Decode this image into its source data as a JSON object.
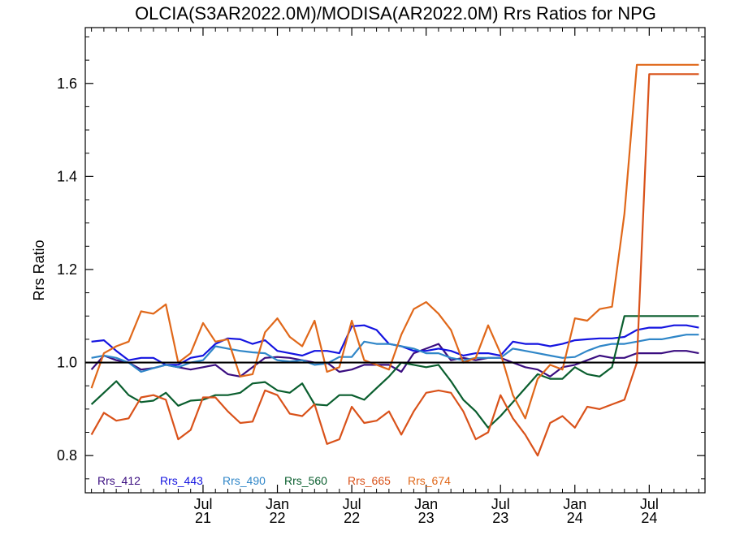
{
  "chart_data": {
    "type": "line",
    "title": "OLCIA(S3AR2022.0M)/MODISA(AR2022.0M)  Rrs Ratios for NPG",
    "xlabel": "",
    "ylabel": "Rrs Ratio",
    "ylim": [
      0.72,
      1.72
    ],
    "yticks": [
      0.8,
      1.0,
      1.2,
      1.4,
      1.6
    ],
    "ytick_labels": [
      "0.8",
      "1.0",
      "1.2",
      "1.4",
      "1.6"
    ],
    "xticks": [
      {
        "top": "Jul",
        "bottom": "21"
      },
      {
        "top": "Jan",
        "bottom": "22"
      },
      {
        "top": "Jul",
        "bottom": "22"
      },
      {
        "top": "Jan",
        "bottom": "23"
      },
      {
        "top": "Jul",
        "bottom": "23"
      },
      {
        "top": "Jan",
        "bottom": "24"
      },
      {
        "top": "Jul",
        "bottom": "24"
      }
    ],
    "x": [
      "2020-10",
      "2020-11",
      "2020-12",
      "2021-01",
      "2021-02",
      "2021-03",
      "2021-04",
      "2021-05",
      "2021-06",
      "2021-07",
      "2021-08",
      "2021-09",
      "2021-10",
      "2021-11",
      "2021-12",
      "2022-01",
      "2022-02",
      "2022-03",
      "2022-04",
      "2022-05",
      "2022-06",
      "2022-07",
      "2022-08",
      "2022-09",
      "2022-10",
      "2022-11",
      "2022-12",
      "2023-01",
      "2023-02",
      "2023-03",
      "2023-04",
      "2023-05",
      "2023-06",
      "2023-07",
      "2023-08",
      "2023-09",
      "2023-10",
      "2023-11",
      "2023-12",
      "2024-01",
      "2024-02",
      "2024-03",
      "2024-04",
      "2024-05",
      "2024-06",
      "2024-07",
      "2024-08",
      "2024-09",
      "2024-10",
      "2024-11"
    ],
    "reference_line": 1.0,
    "legend_position": "bottom-left",
    "series": [
      {
        "name": "Rrs_412",
        "color": "#3a0d80",
        "values": [
          0.985,
          1.015,
          1.005,
          1.0,
          0.985,
          0.988,
          0.995,
          0.99,
          0.985,
          0.99,
          0.995,
          0.975,
          0.97,
          0.99,
          1.01,
          1.012,
          1.01,
          1.005,
          1.0,
          1.0,
          0.98,
          0.985,
          0.995,
          0.995,
          0.995,
          0.98,
          1.02,
          1.03,
          1.04,
          1.005,
          1.01,
          1.005,
          1.01,
          1.01,
          1.0,
          0.99,
          0.985,
          0.97,
          0.99,
          0.995,
          1.005,
          1.015,
          1.01,
          1.01,
          1.02,
          1.02,
          1.02,
          1.025,
          1.025,
          1.02
        ]
      },
      {
        "name": "Rrs_443",
        "color": "#1414e0",
        "values": [
          1.045,
          1.048,
          1.025,
          1.005,
          1.01,
          1.01,
          0.995,
          0.995,
          1.01,
          1.015,
          1.04,
          1.052,
          1.05,
          1.04,
          1.048,
          1.025,
          1.02,
          1.015,
          1.025,
          1.025,
          1.02,
          1.078,
          1.08,
          1.07,
          1.04,
          1.035,
          1.025,
          1.025,
          1.03,
          1.025,
          1.015,
          1.02,
          1.02,
          1.015,
          1.045,
          1.04,
          1.04,
          1.035,
          1.04,
          1.048,
          1.05,
          1.052,
          1.052,
          1.055,
          1.07,
          1.075,
          1.075,
          1.08,
          1.08,
          1.075
        ]
      },
      {
        "name": "Rrs_490",
        "color": "#2f86c8",
        "values": [
          1.01,
          1.015,
          1.01,
          1.0,
          0.98,
          0.988,
          0.995,
          0.99,
          1.0,
          1.005,
          1.035,
          1.03,
          1.025,
          1.022,
          1.02,
          1.005,
          1.002,
          1.005,
          0.995,
          0.998,
          1.012,
          1.012,
          1.045,
          1.04,
          1.04,
          1.035,
          1.03,
          1.02,
          1.02,
          1.01,
          1.005,
          1.01,
          1.01,
          1.01,
          1.03,
          1.025,
          1.02,
          1.015,
          1.01,
          1.012,
          1.025,
          1.035,
          1.04,
          1.04,
          1.045,
          1.05,
          1.05,
          1.055,
          1.06,
          1.06
        ]
      },
      {
        "name": "Rrs_560",
        "color": "#0a5e2e",
        "values": [
          0.91,
          0.935,
          0.96,
          0.93,
          0.915,
          0.918,
          0.935,
          0.907,
          0.918,
          0.92,
          0.93,
          0.93,
          0.935,
          0.955,
          0.958,
          0.94,
          0.935,
          0.955,
          0.91,
          0.908,
          0.93,
          0.93,
          0.92,
          0.945,
          0.97,
          1.0,
          0.995,
          0.99,
          0.995,
          0.96,
          0.92,
          0.895,
          0.86,
          0.885,
          0.915,
          0.945,
          0.975,
          0.965,
          0.965,
          0.99,
          0.975,
          0.97,
          0.99,
          1.1,
          1.1,
          1.1,
          1.1,
          1.1,
          1.1,
          1.1
        ]
      },
      {
        "name": "Rrs_665",
        "color": "#d9521a",
        "values": [
          0.845,
          0.892,
          0.875,
          0.88,
          0.925,
          0.93,
          0.92,
          0.835,
          0.855,
          0.925,
          0.925,
          0.895,
          0.87,
          0.873,
          0.94,
          0.93,
          0.89,
          0.885,
          0.91,
          0.825,
          0.835,
          0.905,
          0.87,
          0.875,
          0.895,
          0.845,
          0.895,
          0.935,
          0.94,
          0.935,
          0.895,
          0.835,
          0.85,
          0.93,
          0.88,
          0.845,
          0.8,
          0.87,
          0.885,
          0.86,
          0.905,
          0.9,
          0.91,
          0.92,
          1.0,
          1.62,
          1.62,
          1.62,
          1.62,
          1.62
        ]
      },
      {
        "name": "Rrs_674",
        "color": "#e0681a",
        "values": [
          0.945,
          1.02,
          1.035,
          1.045,
          1.11,
          1.105,
          1.125,
          1.0,
          1.02,
          1.085,
          1.045,
          1.05,
          0.97,
          0.975,
          1.065,
          1.095,
          1.055,
          1.035,
          1.09,
          0.98,
          0.99,
          1.09,
          1.005,
          0.995,
          0.985,
          1.06,
          1.115,
          1.13,
          1.105,
          1.07,
          1.0,
          1.01,
          1.08,
          1.02,
          0.93,
          0.88,
          0.965,
          0.995,
          0.985,
          1.095,
          1.09,
          1.115,
          1.12,
          1.32,
          1.64,
          1.64,
          1.64,
          1.64,
          1.64,
          1.64
        ]
      }
    ]
  }
}
